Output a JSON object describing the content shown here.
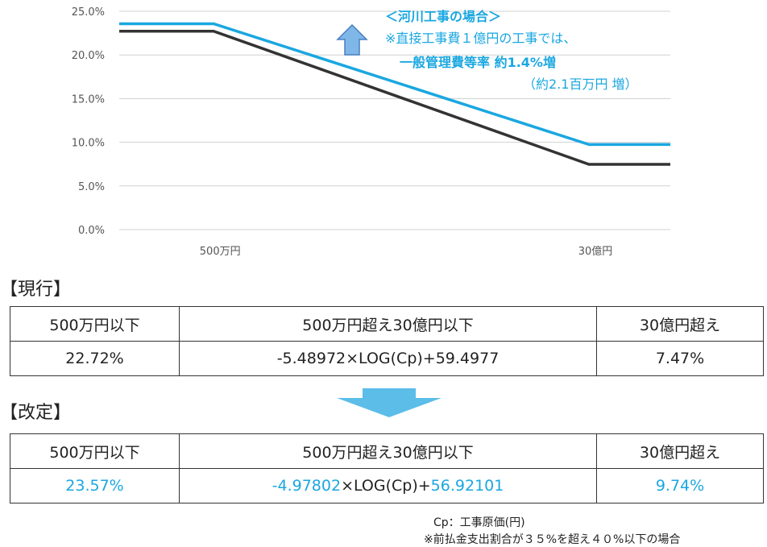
{
  "chart_data": {
    "type": "line",
    "categories": [
      "500万円",
      "30億円"
    ],
    "yticks": [
      "25.0%",
      "20.0%",
      "15.0%",
      "10.0%",
      "5.0%",
      "0.0%"
    ],
    "ylim": [
      0,
      25
    ],
    "x_axis": "log (工事原価, 円)",
    "series": [
      {
        "color": "#1aa7e0",
        "values": [
          {
            "x": 1000000,
            "y": 23.57
          },
          {
            "x": 5000000,
            "y": 23.57
          },
          {
            "x": 3000000000,
            "y": 9.74
          },
          {
            "x": 12000000000,
            "y": 9.74
          }
        ]
      },
      {
        "color": "#333333",
        "values": [
          {
            "x": 1000000,
            "y": 22.72
          },
          {
            "x": 5000000,
            "y": 22.72
          },
          {
            "x": 3000000000,
            "y": 7.47
          },
          {
            "x": 12000000000,
            "y": 7.47
          }
        ]
      }
    ],
    "grid": true
  },
  "callout": {
    "title": "＜河川工事の場合＞",
    "line1": "※直接工事費１億円の工事では、",
    "line2": "一般管理費等率 約1.4%増",
    "line3": "（約2.1百万円 増）",
    "color": "#1aa7e0"
  },
  "current": {
    "label": "【現行】",
    "headers": [
      "500万円以下",
      "500万円超え30億円以下",
      "30億円超え"
    ],
    "values": [
      "22.72%",
      "-5.48972×LOG(Cp)+59.4977",
      "7.47%"
    ]
  },
  "revised": {
    "label": "【改定】",
    "headers": [
      "500万円以下",
      "500万円超え30億円以下",
      "30億円超え"
    ],
    "val_low": "23.57%",
    "formula_a": "-4.97802",
    "formula_b": "×LOG(Cp)+",
    "formula_c": "56.92101",
    "val_high": "9.74%"
  },
  "notes": {
    "cp": "Cp：工事原価(円)",
    "condition": "※前払金支出割合が３５%を超え４０%以下の場合"
  }
}
